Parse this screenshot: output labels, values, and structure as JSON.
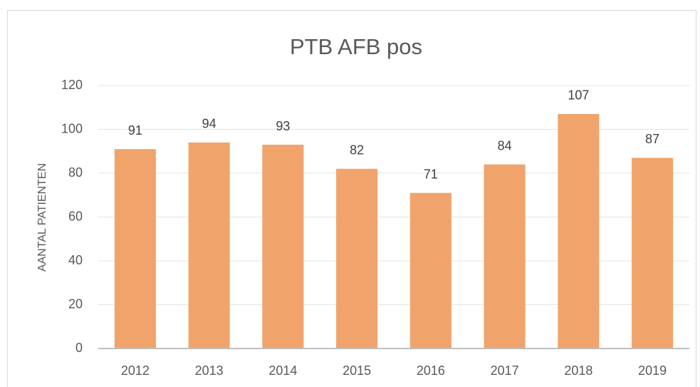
{
  "chart_data": {
    "type": "bar",
    "title": "PTB AFB pos",
    "y_label": "AANTAL PATIENTEN",
    "categories": [
      "2012",
      "2013",
      "2014",
      "2015",
      "2016",
      "2017",
      "2018",
      "2019"
    ],
    "values": [
      91,
      94,
      93,
      82,
      71,
      84,
      107,
      87
    ],
    "color": "#f0a46c",
    "ylim": [
      0,
      120
    ],
    "yticks": [
      0,
      20,
      40,
      60,
      80,
      100,
      120
    ],
    "grid": true
  }
}
